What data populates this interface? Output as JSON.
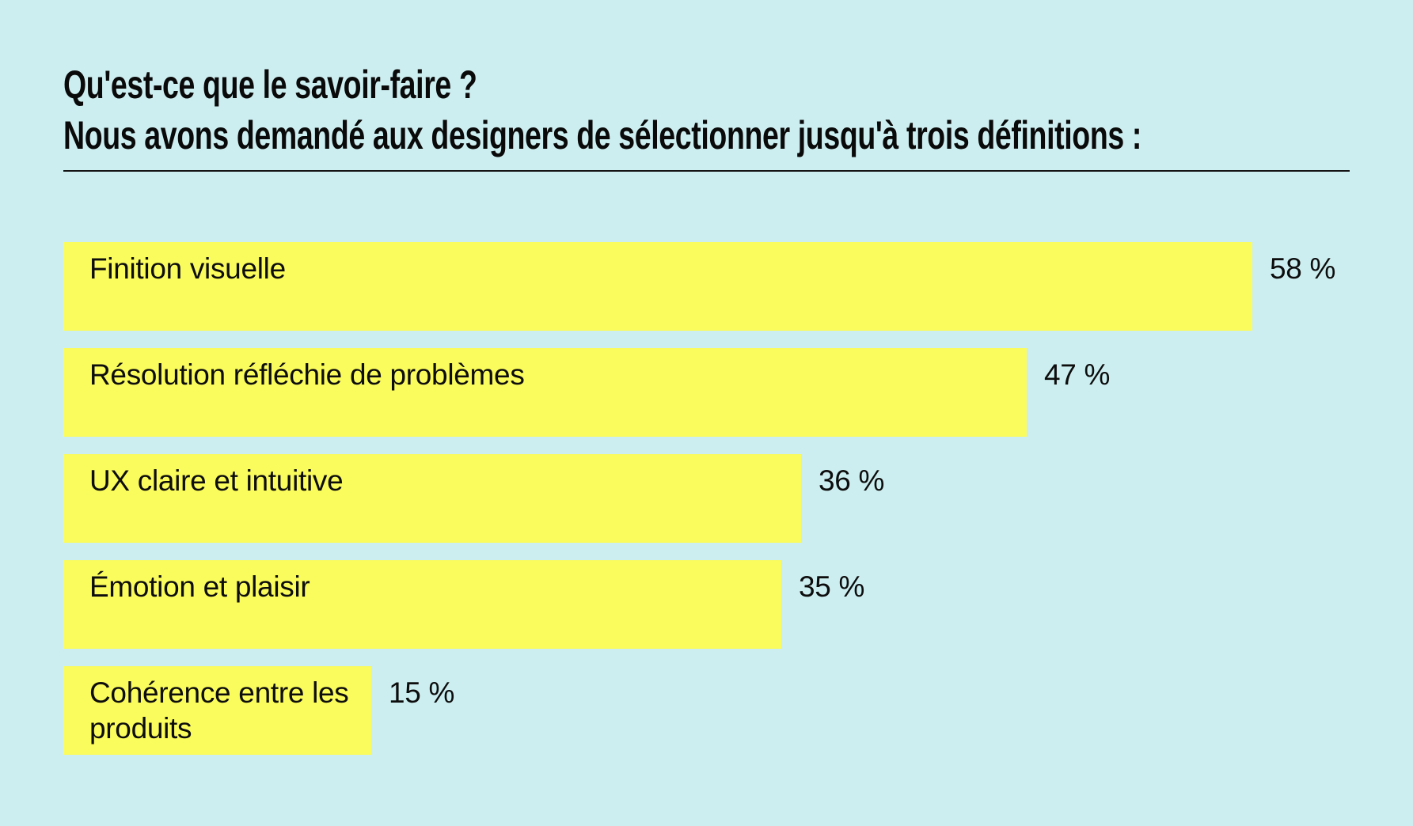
{
  "chart_data": {
    "type": "bar",
    "orientation": "horizontal",
    "title": "Qu'est-ce que le savoir-faire ?",
    "subtitle": "Nous avons demandé aux designers de sélectionner jusqu'à trois définitions :",
    "categories": [
      "Finition visuelle",
      "Résolution réfléchie de problèmes",
      "UX claire et intuitive",
      "Émotion et plaisir",
      "Cohérence entre les produits"
    ],
    "values": [
      58,
      47,
      36,
      35,
      15
    ],
    "value_labels": [
      "58 %",
      "47 %",
      "36 %",
      "35 %",
      "15 %"
    ],
    "unit": "%",
    "xlim": [
      0,
      62
    ],
    "grid": false,
    "legend": false,
    "value_label_position": "right-of-bar",
    "category_label_position": "inside-bar",
    "colors": {
      "background": "#cdeef0",
      "bar": "#fafb5c",
      "text": "#0d0d0d",
      "divider": "#141414"
    }
  }
}
